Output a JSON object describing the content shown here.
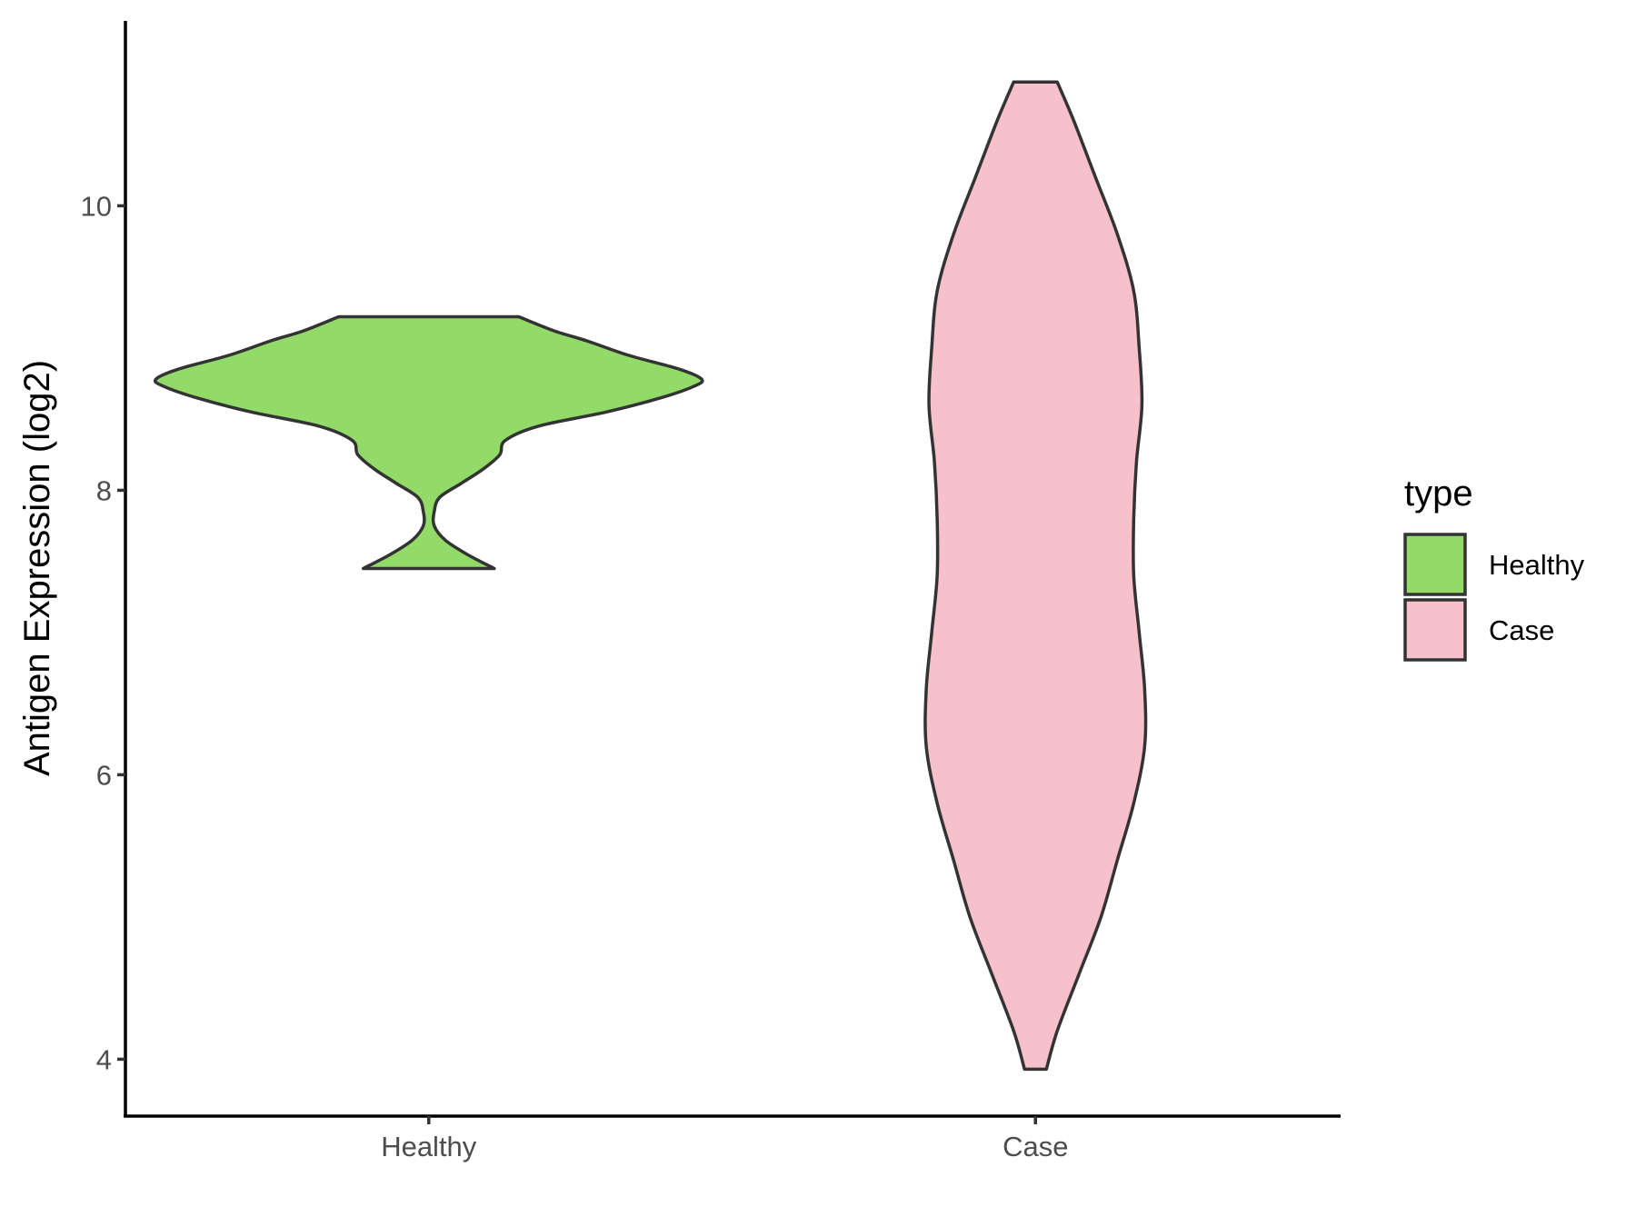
{
  "chart_data": {
    "type": "violin",
    "ylabel": "Antigen Expression (log2)",
    "xlabel": "",
    "categories": [
      "Healthy",
      "Case"
    ],
    "yticks": [
      4,
      6,
      8,
      10
    ],
    "ylim": [
      3.6,
      11.3
    ],
    "legend": {
      "title": "type",
      "placement": "right",
      "entries": [
        {
          "label": "Healthy",
          "color": "#93db69"
        },
        {
          "label": "Case",
          "color": "#f7c1cb"
        }
      ]
    },
    "series": [
      {
        "name": "Healthy",
        "color": "#93db69",
        "range": [
          7.45,
          9.22
        ],
        "profile": [
          [
            7.45,
            0.24
          ],
          [
            7.55,
            0.14
          ],
          [
            7.65,
            0.06
          ],
          [
            7.75,
            0.02
          ],
          [
            7.85,
            0.02
          ],
          [
            7.95,
            0.04
          ],
          [
            8.05,
            0.12
          ],
          [
            8.15,
            0.2
          ],
          [
            8.25,
            0.26
          ],
          [
            8.35,
            0.28
          ],
          [
            8.45,
            0.4
          ],
          [
            8.55,
            0.65
          ],
          [
            8.65,
            0.85
          ],
          [
            8.73,
            0.97
          ],
          [
            8.78,
            1.0
          ],
          [
            8.85,
            0.92
          ],
          [
            8.95,
            0.73
          ],
          [
            9.05,
            0.58
          ],
          [
            9.12,
            0.46
          ],
          [
            9.22,
            0.33
          ]
        ]
      },
      {
        "name": "Case",
        "color": "#f7c1cb",
        "range": [
          3.93,
          10.87
        ],
        "profile": [
          [
            3.93,
            0.04
          ],
          [
            4.2,
            0.08
          ],
          [
            4.6,
            0.16
          ],
          [
            5.0,
            0.24
          ],
          [
            5.4,
            0.3
          ],
          [
            5.8,
            0.36
          ],
          [
            6.2,
            0.4
          ],
          [
            6.6,
            0.4
          ],
          [
            7.0,
            0.38
          ],
          [
            7.4,
            0.36
          ],
          [
            7.8,
            0.36
          ],
          [
            8.2,
            0.37
          ],
          [
            8.6,
            0.39
          ],
          [
            9.0,
            0.38
          ],
          [
            9.4,
            0.36
          ],
          [
            9.8,
            0.3
          ],
          [
            10.2,
            0.22
          ],
          [
            10.6,
            0.14
          ],
          [
            10.87,
            0.08
          ]
        ]
      }
    ]
  }
}
